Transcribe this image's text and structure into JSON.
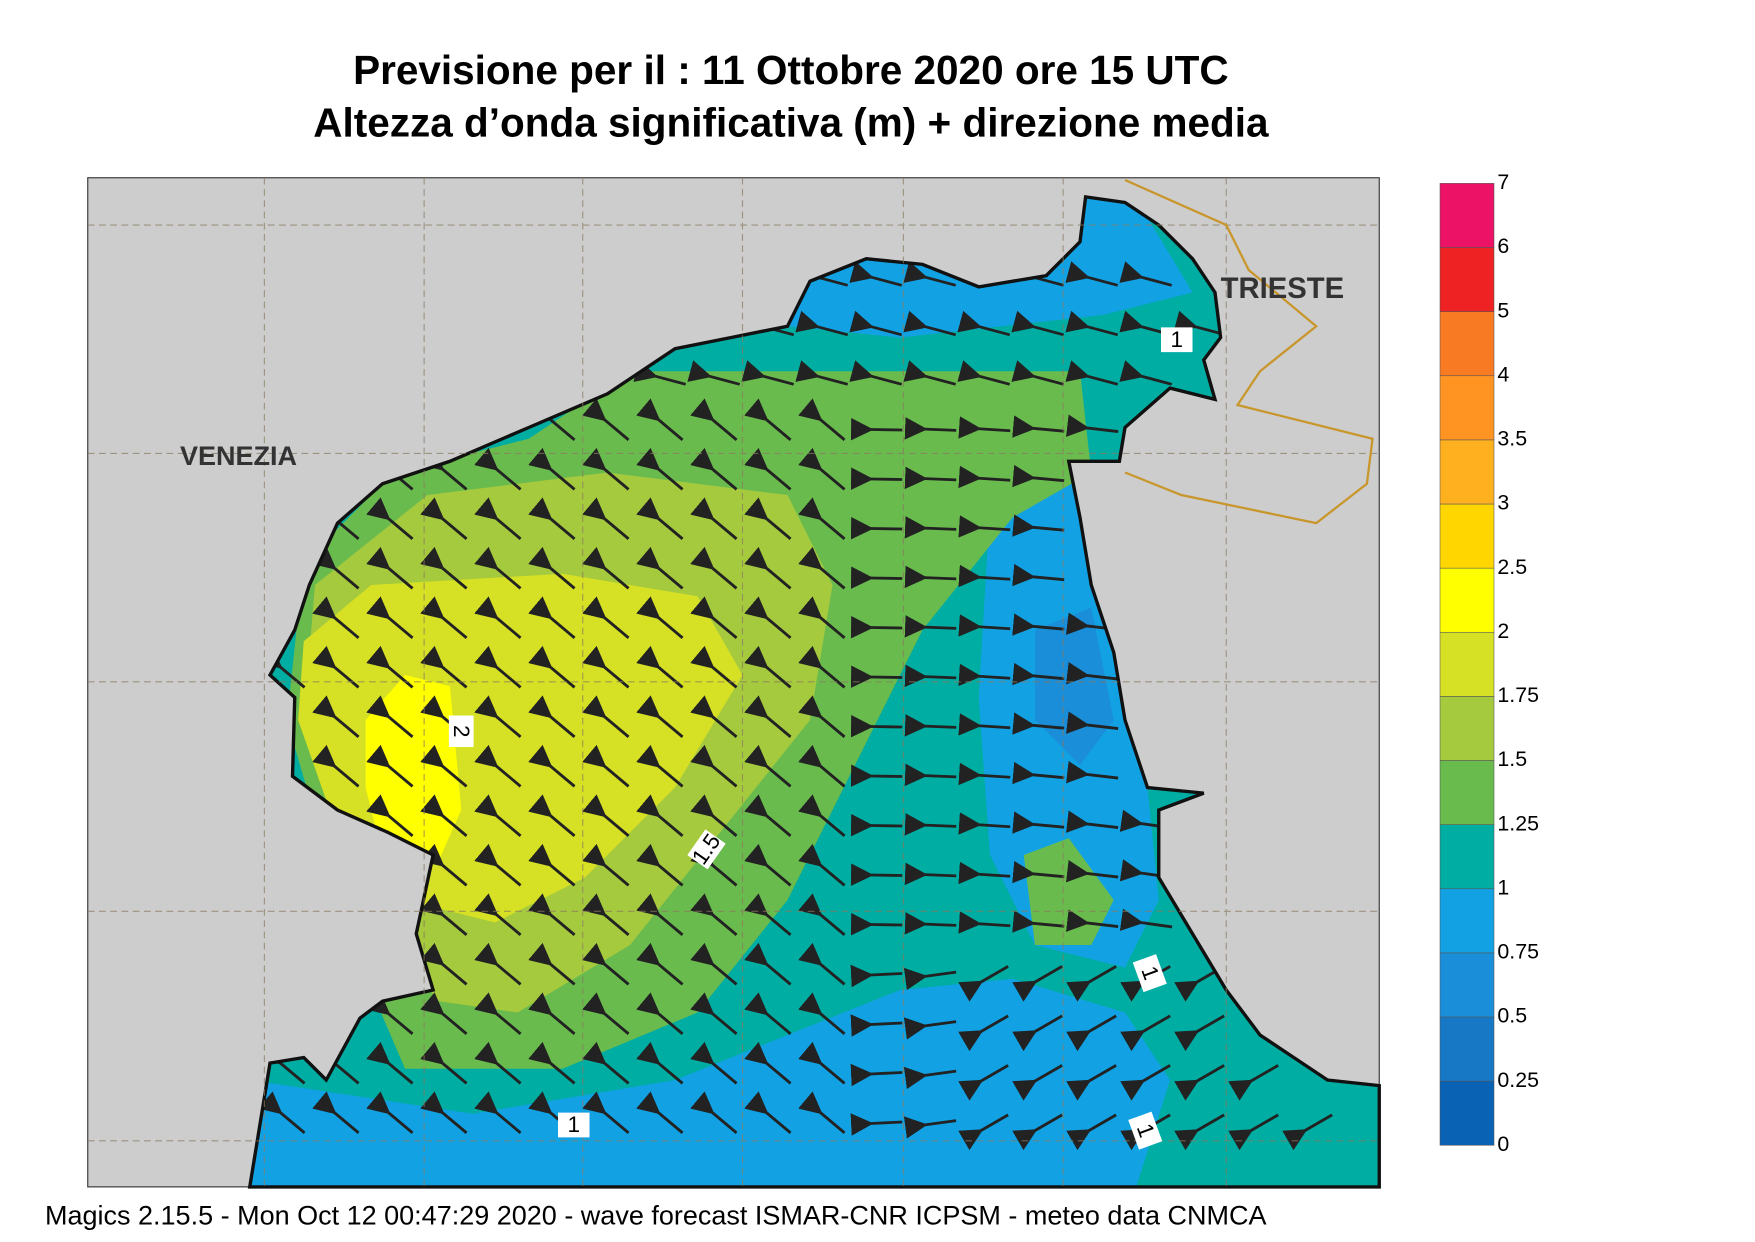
{
  "header": {
    "title": "Previsione per il  :  11  Ottobre  2020   ore 15 UTC",
    "subtitle": "Altezza d’onda significativa (m) + direzione media"
  },
  "map": {
    "places": [
      "VENEZIA",
      "TRIESTE"
    ],
    "contour_labels": [
      "1",
      "2",
      "1.5",
      "1",
      "1",
      "1"
    ]
  },
  "colorbar": {
    "levels": [
      0,
      0.25,
      0.5,
      0.75,
      1,
      1.25,
      1.5,
      1.75,
      2,
      2.5,
      3,
      3.5,
      4,
      5,
      6,
      7
    ],
    "colors": [
      "#0a62b4",
      "#1778c6",
      "#1a8ed8",
      "#12a2e4",
      "#00ada2",
      "#6abb4e",
      "#a6ca3e",
      "#d6e024",
      "#ffff00",
      "#ffd600",
      "#ffb01e",
      "#ff9422",
      "#f87a22",
      "#ee2222",
      "#ec1266"
    ]
  },
  "footer": "Magics 2.15.5 - Mon Oct 12 00:47:29 2020 - wave forecast  ISMAR-CNR  ICPSM - meteo data   CNMCA"
}
